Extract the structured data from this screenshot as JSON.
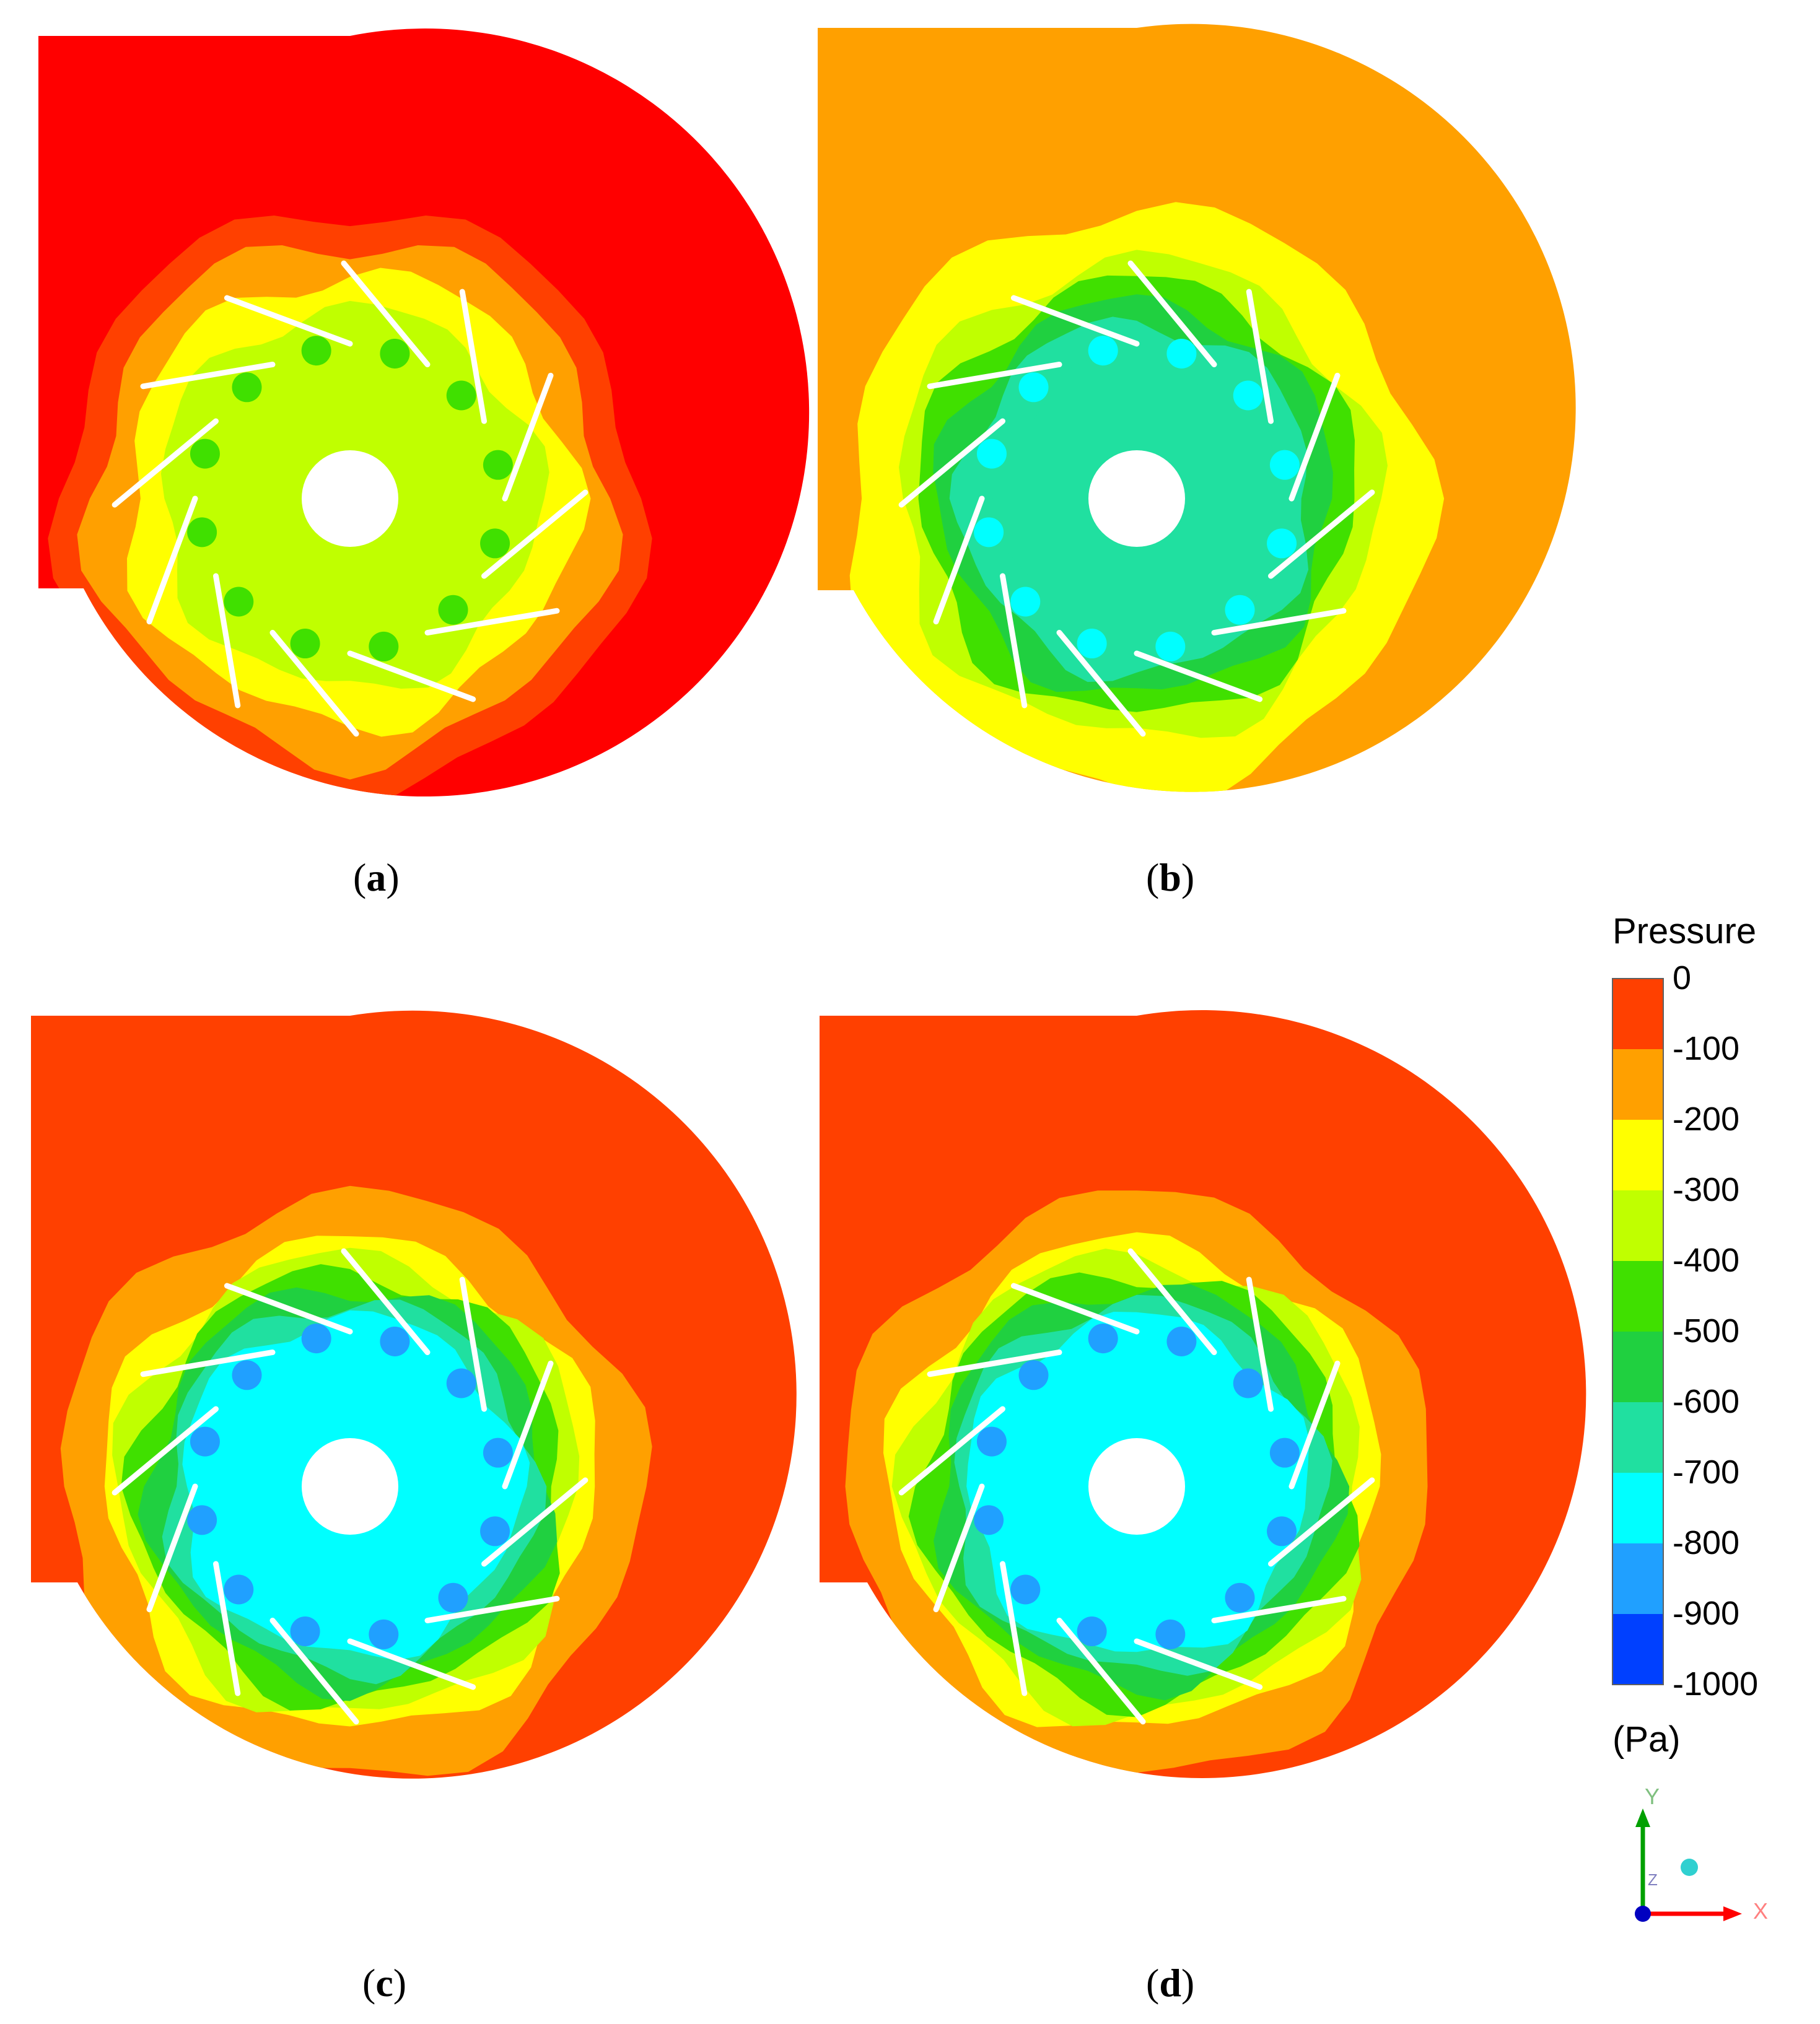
{
  "panels": [
    {
      "id": "a",
      "label": "a",
      "inner_level": 3,
      "mid_level": 2,
      "outer_level": 0,
      "body": "#ff0000",
      "ring": "#ff4000"
    },
    {
      "id": "b",
      "label": "b",
      "inner_level": 6,
      "mid_level": 4,
      "outer_level": 1,
      "body": "#ffa000",
      "ring": "#ffff00"
    },
    {
      "id": "c",
      "label": "c",
      "inner_level": 7,
      "mid_level": 5,
      "outer_level": 0,
      "body": "#ff4000",
      "ring": "#ffa000"
    },
    {
      "id": "d",
      "label": "d",
      "inner_level": 7,
      "mid_level": 5,
      "outer_level": 0,
      "body": "#ff4000",
      "ring": "#ffa000"
    }
  ],
  "legend": {
    "title": "Pressure",
    "unit": "(Pa)",
    "ticks": [
      "0",
      "-100",
      "-200",
      "-300",
      "-400",
      "-500",
      "-600",
      "-700",
      "-800",
      "-900",
      "-1000"
    ],
    "colors": [
      "#ff4000",
      "#ffa000",
      "#ffff00",
      "#c0ff00",
      "#40e000",
      "#20d040",
      "#20e0a0",
      "#00ffff",
      "#20a0ff",
      "#0040ff"
    ]
  },
  "triad": {
    "x_label": "X",
    "y_label": "Y",
    "z_label": "Z",
    "x_color": "#ff0000",
    "y_color": "#00a000",
    "z_color": "#0000c0"
  }
}
